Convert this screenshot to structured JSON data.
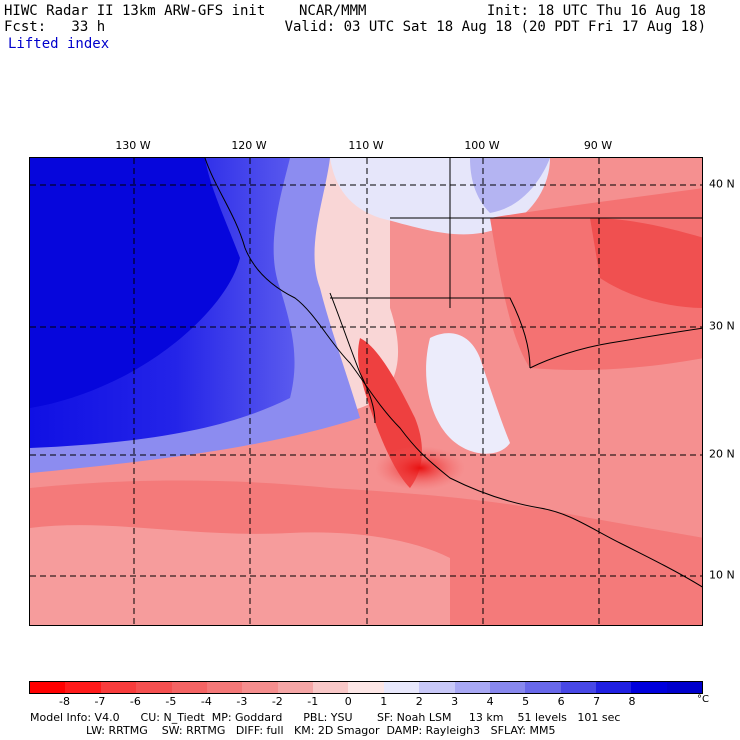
{
  "header": {
    "title": "HIWC Radar II 13km ARW-GFS init    NCAR/MMM",
    "fcst": "Fcst:   33 h",
    "field": "Lifted index",
    "init": "Init: 18 UTC Thu 16 Aug 18",
    "valid": "Valid: 03 UTC Sat 18 Aug 18 (20 PDT Fri 17 Aug 18)"
  },
  "map": {
    "longitude_labels": [
      "130 W",
      "120 W",
      "110 W",
      "100 W",
      "90 W"
    ],
    "latitude_labels": [
      "40 N",
      "30 N",
      "20 N",
      "10 N"
    ]
  },
  "colorbar": {
    "ticks": [
      "-8",
      "-7",
      "-6",
      "-5",
      "-4",
      "-3",
      "-2",
      "-1",
      "0",
      "1",
      "2",
      "3",
      "4",
      "5",
      "6",
      "7",
      "8"
    ],
    "unit": "°C",
    "colors": [
      "#ff0000",
      "#ff1a1a",
      "#f83c3c",
      "#f55050",
      "#f46464",
      "#f47878",
      "#f58e8e",
      "#f5a6a6",
      "#f9c8c8",
      "#fce6e6",
      "#e8e8fc",
      "#c8c8f8",
      "#a8a8f4",
      "#8888ee",
      "#6868ea",
      "#4848e6",
      "#2020e2",
      "#0000dc",
      "#0000cc"
    ]
  },
  "footer": {
    "line1": "Model Info: V4.0      CU: N_Tiedt  MP: Goddard      PBL: YSU       SF: Noah LSM     13 km    51 levels   101 sec",
    "line2": "                LW: RRTMG    SW: RRTMG   DIFF: full   KM: 2D Smagor  DAMP: Rayleigh3   SFLAY: MM5"
  },
  "colors": {
    "ocean_stable": "#1a1ae6",
    "unstable": "#f46464"
  }
}
